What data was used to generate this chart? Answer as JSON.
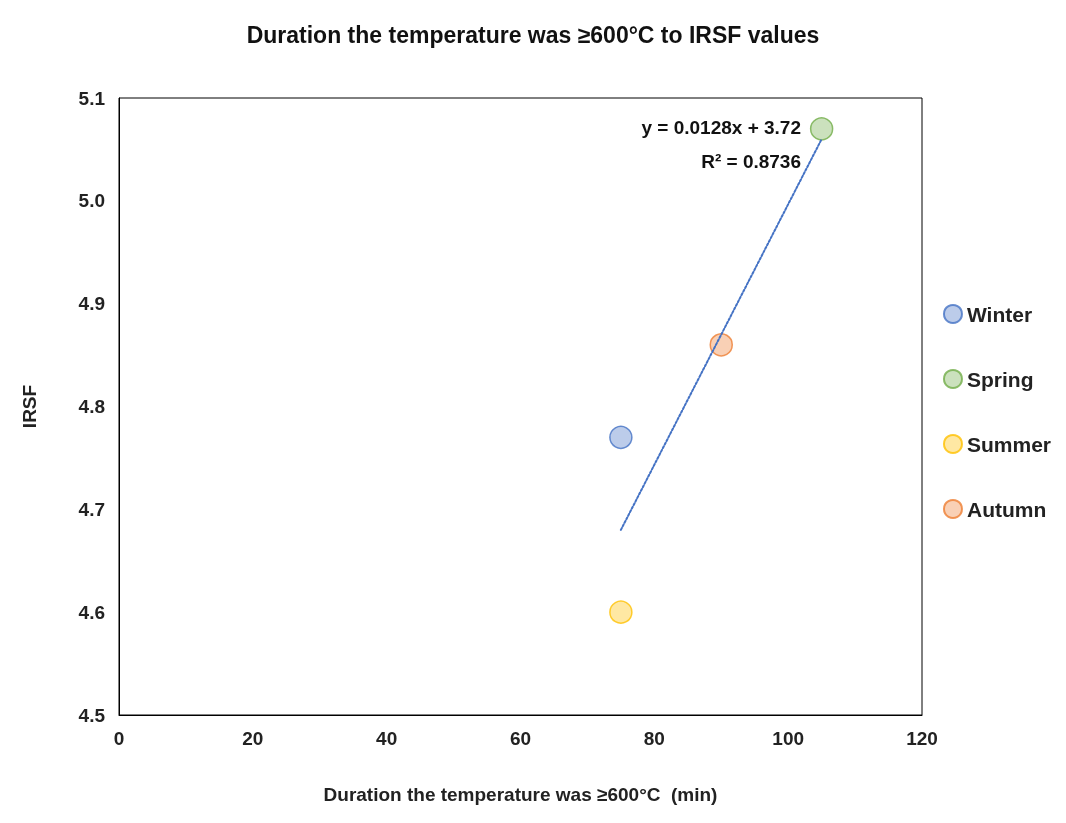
{
  "chart_data": {
    "type": "scatter",
    "title": "Duration the temperature was ≥600°C to IRSF values",
    "xlabel": "Duration the temperature was ≥600°C  (min)",
    "ylabel": "IRSF",
    "series": [
      {
        "name": "Winter",
        "color": "#4472c4",
        "x": [
          75
        ],
        "values": [
          4.77
        ]
      },
      {
        "name": "Spring",
        "color": "#70ad47",
        "x": [
          105
        ],
        "values": [
          5.07
        ]
      },
      {
        "name": "Summer",
        "color": "#ffc000",
        "x": [
          75
        ],
        "values": [
          4.6
        ]
      },
      {
        "name": "Autumn",
        "color": "#ed7d31",
        "x": [
          90
        ],
        "values": [
          4.86
        ]
      },
      {
        "type": "line",
        "color": "#4472c4",
        "line_style": "dotted",
        "marker": "none",
        "x": [
          75,
          105
        ],
        "values": [
          4.68,
          5.06
        ]
      }
    ],
    "annotations": [
      "y = 0.0128x + 3.72",
      "R² = 0.8736"
    ],
    "xlim": [
      0,
      120
    ],
    "xticks": [
      0,
      20,
      40,
      60,
      80,
      100,
      120
    ],
    "ylim": [
      4.5,
      5.1
    ],
    "yticks": [
      4.5,
      4.6,
      4.7,
      4.8,
      4.9,
      {
        "value": 5,
        "label": "5.0"
      },
      5.1
    ],
    "grid": false,
    "legend": "right",
    "marker": "circle"
  }
}
